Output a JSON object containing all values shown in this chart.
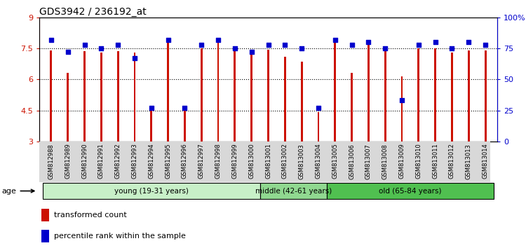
{
  "title": "GDS3942 / 236192_at",
  "samples": [
    "GSM812988",
    "GSM812989",
    "GSM812990",
    "GSM812991",
    "GSM812992",
    "GSM812993",
    "GSM812994",
    "GSM812995",
    "GSM812996",
    "GSM812997",
    "GSM812998",
    "GSM812999",
    "GSM813000",
    "GSM813001",
    "GSM813002",
    "GSM813003",
    "GSM813004",
    "GSM813005",
    "GSM813006",
    "GSM813007",
    "GSM813008",
    "GSM813009",
    "GSM813010",
    "GSM813011",
    "GSM813012",
    "GSM813013",
    "GSM813014"
  ],
  "bar_values": [
    7.4,
    6.3,
    7.35,
    7.3,
    7.35,
    7.3,
    4.6,
    7.9,
    4.5,
    7.5,
    7.8,
    7.35,
    7.3,
    7.45,
    7.1,
    6.85,
    4.4,
    7.8,
    6.3,
    7.8,
    7.5,
    6.15,
    7.5,
    7.5,
    7.3,
    7.4,
    7.4
  ],
  "dot_values": [
    82,
    72,
    78,
    75,
    78,
    67,
    27,
    82,
    27,
    78,
    82,
    75,
    72,
    78,
    78,
    75,
    27,
    82,
    78,
    80,
    75,
    33,
    78,
    80,
    75,
    80,
    78
  ],
  "bar_color": "#CC1100",
  "dot_color": "#0000CC",
  "ylim_left": [
    3,
    9
  ],
  "ylim_right": [
    0,
    100
  ],
  "yticks_left": [
    3,
    4.5,
    6,
    7.5,
    9
  ],
  "ytick_labels_left": [
    "3",
    "4.5",
    "6",
    "7.5",
    "9"
  ],
  "yticks_right": [
    0,
    25,
    50,
    75,
    100
  ],
  "ytick_labels_right": [
    "0",
    "25",
    "50",
    "75",
    "100%"
  ],
  "groups": [
    {
      "label": "young (19-31 years)",
      "start": 0,
      "end": 13,
      "color": "#c8f0c8"
    },
    {
      "label": "middle (42-61 years)",
      "start": 13,
      "end": 17,
      "color": "#90d890"
    },
    {
      "label": "old (65-84 years)",
      "start": 17,
      "end": 27,
      "color": "#50c050"
    }
  ],
  "age_label": "age",
  "legend_bar_label": "transformed count",
  "legend_dot_label": "percentile rank within the sample",
  "grid_color": "black",
  "tick_label_color_left": "#CC1100",
  "tick_label_color_right": "#0000CC",
  "bar_width": 0.12,
  "background_color": "#ffffff",
  "plot_bg_color": "#ffffff",
  "grid_yticks": [
    4.5,
    6.0,
    7.5
  ]
}
